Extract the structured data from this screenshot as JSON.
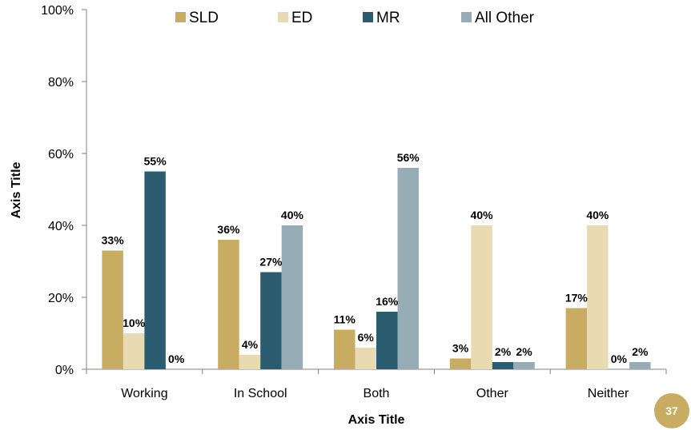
{
  "chart_data": {
    "type": "bar",
    "categories": [
      "Working",
      "In School",
      "Both",
      "Other",
      "Neither"
    ],
    "series": [
      {
        "name": "SLD",
        "color": "#c8ac61",
        "values": [
          33,
          36,
          11,
          3,
          17
        ],
        "labels": [
          "33%",
          "36%",
          "11%",
          "3%",
          "17%"
        ]
      },
      {
        "name": "ED",
        "color": "#e9dbb1",
        "values": [
          10,
          4,
          6,
          40,
          40
        ],
        "labels": [
          "10%",
          "4%",
          "6%",
          "40%",
          "40%"
        ]
      },
      {
        "name": "MR",
        "color": "#2b5c6f",
        "values": [
          55,
          27,
          16,
          2,
          0
        ],
        "labels": [
          "55%",
          "27%",
          "16%",
          "2%",
          "0%"
        ]
      },
      {
        "name": "All Other",
        "color": "#96adb6",
        "values": [
          0,
          40,
          56,
          2,
          2
        ],
        "labels": [
          "0%",
          "40%",
          "56%",
          "2%",
          "2%"
        ]
      }
    ],
    "yticks": [
      "0%",
      "20%",
      "40%",
      "60%",
      "80%",
      "100%"
    ],
    "ylim": [
      0,
      100
    ],
    "xlabel": "Axis Title",
    "ylabel": "Axis Title",
    "legend_position": "top",
    "grid": false
  },
  "page_number": "37"
}
